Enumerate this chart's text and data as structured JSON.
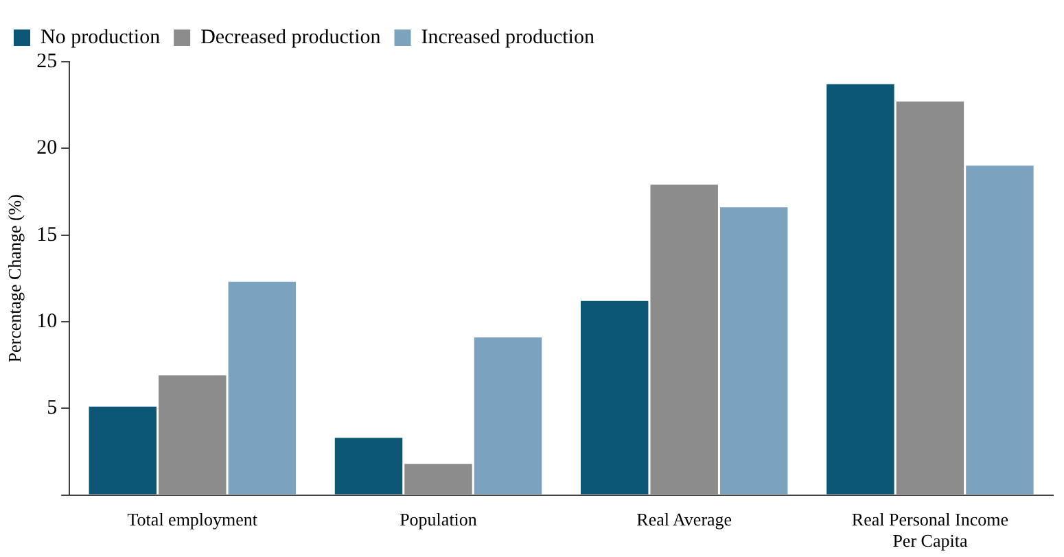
{
  "chart_data": {
    "type": "bar",
    "ylabel": "Percentage Change (%)",
    "categories": [
      "Total employment",
      "Population",
      "Real Average",
      "Real Personal Income Per Capita"
    ],
    "series": [
      {
        "name": "No production",
        "color": "#0d5776",
        "values": [
          5.1,
          3.3,
          11.2,
          23.7
        ]
      },
      {
        "name": "Decreased production",
        "color": "#8c8c8c",
        "values": [
          6.9,
          1.8,
          17.9,
          22.7
        ]
      },
      {
        "name": "Increased production",
        "color": "#7ba3c0",
        "values": [
          12.3,
          9.1,
          16.6,
          19.0
        ]
      }
    ],
    "ylim": [
      0,
      25
    ],
    "yticks": [
      {
        "value": 0,
        "label": null
      },
      5,
      10,
      15,
      20,
      25
    ],
    "grid": false,
    "legend": "top left"
  }
}
